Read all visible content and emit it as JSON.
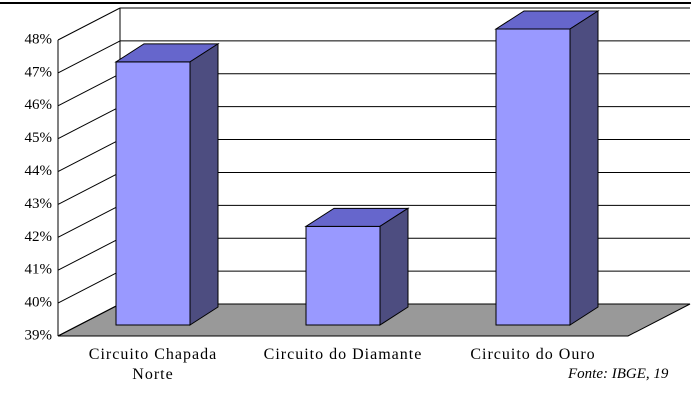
{
  "chart_data": {
    "type": "bar3d",
    "categories": [
      "Circuito Chapada Norte",
      "Circuito do Diamante",
      "Circuito do Ouro"
    ],
    "values": [
      47,
      42,
      48
    ],
    "value_labels": null,
    "color": "#9999ff",
    "ylim": [
      39,
      48
    ],
    "yticks": [
      {
        "value": 39,
        "label": "39%"
      },
      {
        "value": 40,
        "label": "40%"
      },
      {
        "value": 41,
        "label": "41%"
      },
      {
        "value": 42,
        "label": "42%"
      },
      {
        "value": 43,
        "label": "43%"
      },
      {
        "value": 44,
        "label": "44%"
      },
      {
        "value": 45,
        "label": "45%"
      },
      {
        "value": 46,
        "label": "46%"
      },
      {
        "value": 47,
        "label": "47%"
      },
      {
        "value": 48,
        "label": "48%"
      }
    ],
    "grid": true,
    "annotation": "Fonte: IBGE, 19"
  }
}
